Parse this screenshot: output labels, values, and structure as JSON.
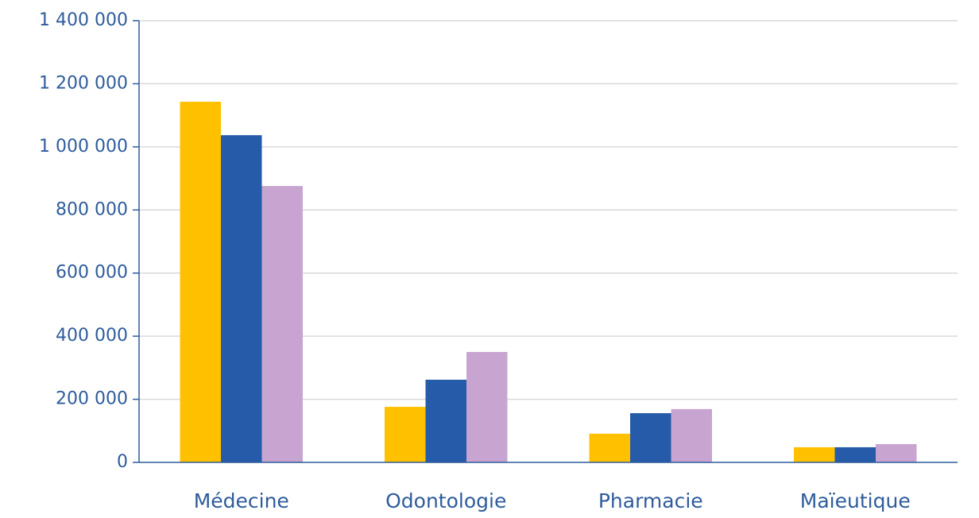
{
  "chart_data": {
    "type": "bar",
    "categories": [
      "Médecine",
      "Odontologie",
      "Pharmacie",
      "Maïeutique"
    ],
    "series": [
      {
        "color": "#ffc000",
        "values": [
          1143000,
          176000,
          91000,
          48000
        ]
      },
      {
        "color": "#255ba8",
        "values": [
          1037000,
          262000,
          156000,
          48000
        ]
      },
      {
        "color": "#c8a5d0",
        "values": [
          876000,
          350000,
          169000,
          58000
        ]
      }
    ],
    "ylim": [
      0,
      1400000
    ],
    "yticks": [
      0,
      {
        "value": 200000,
        "label": "200 000"
      },
      {
        "value": 400000,
        "label": "400 000"
      },
      {
        "value": 600000,
        "label": "600 000"
      },
      {
        "value": 800000,
        "label": "800 000"
      },
      {
        "value": 1000000,
        "label": "1 000 000"
      },
      {
        "value": 1200000,
        "label": "1 200 000"
      },
      {
        "value": 1400000,
        "label": "1 400 000"
      }
    ],
    "grid": true
  }
}
